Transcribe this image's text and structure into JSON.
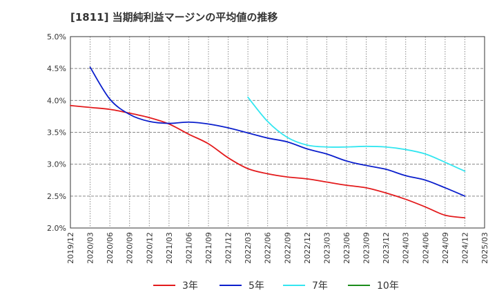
{
  "chart_data": {
    "type": "line",
    "title": "[1811]  当期純利益マージンの平均値の推移",
    "xlabel": "",
    "ylabel": "",
    "ylim": [
      2.0,
      5.0
    ],
    "yticks": [
      "2.0%",
      "2.5%",
      "3.0%",
      "3.5%",
      "4.0%",
      "4.5%",
      "5.0%"
    ],
    "xticks": [
      "2019/12",
      "2020/03",
      "2020/06",
      "2020/09",
      "2020/12",
      "2021/03",
      "2021/06",
      "2021/09",
      "2021/12",
      "2022/03",
      "2022/06",
      "2022/09",
      "2022/12",
      "2023/03",
      "2023/06",
      "2023/09",
      "2023/12",
      "2024/03",
      "2024/06",
      "2024/09",
      "2024/12",
      "2025/03"
    ],
    "grid": true,
    "legend_position": "bottom",
    "series": [
      {
        "name": "3年",
        "color": "#e31a1c",
        "points": [
          [
            "2019/12",
            3.92
          ],
          [
            "2020/03",
            3.89
          ],
          [
            "2020/06",
            3.86
          ],
          [
            "2020/09",
            3.8
          ],
          [
            "2020/12",
            3.73
          ],
          [
            "2021/03",
            3.63
          ],
          [
            "2021/06",
            3.47
          ],
          [
            "2021/09",
            3.32
          ],
          [
            "2021/12",
            3.1
          ],
          [
            "2022/03",
            2.93
          ],
          [
            "2022/06",
            2.85
          ],
          [
            "2022/09",
            2.8
          ],
          [
            "2022/12",
            2.77
          ],
          [
            "2023/03",
            2.72
          ],
          [
            "2023/06",
            2.67
          ],
          [
            "2023/09",
            2.63
          ],
          [
            "2023/12",
            2.55
          ],
          [
            "2024/03",
            2.45
          ],
          [
            "2024/06",
            2.33
          ],
          [
            "2024/09",
            2.2
          ],
          [
            "2024/12",
            2.16
          ]
        ]
      },
      {
        "name": "5年",
        "color": "#0a1ecc",
        "points": [
          [
            "2020/03",
            4.52
          ],
          [
            "2020/06",
            4.02
          ],
          [
            "2020/09",
            3.78
          ],
          [
            "2020/12",
            3.67
          ],
          [
            "2021/03",
            3.64
          ],
          [
            "2021/06",
            3.66
          ],
          [
            "2021/09",
            3.63
          ],
          [
            "2021/12",
            3.57
          ],
          [
            "2022/03",
            3.49
          ],
          [
            "2022/06",
            3.41
          ],
          [
            "2022/09",
            3.35
          ],
          [
            "2022/12",
            3.24
          ],
          [
            "2023/03",
            3.16
          ],
          [
            "2023/06",
            3.05
          ],
          [
            "2023/09",
            2.98
          ],
          [
            "2023/12",
            2.92
          ],
          [
            "2024/03",
            2.82
          ],
          [
            "2024/06",
            2.75
          ],
          [
            "2024/09",
            2.63
          ],
          [
            "2024/12",
            2.5
          ]
        ]
      },
      {
        "name": "7年",
        "color": "#33e6f0",
        "points": [
          [
            "2022/03",
            4.05
          ],
          [
            "2022/06",
            3.67
          ],
          [
            "2022/09",
            3.42
          ],
          [
            "2022/12",
            3.3
          ],
          [
            "2023/03",
            3.27
          ],
          [
            "2023/06",
            3.27
          ],
          [
            "2023/09",
            3.28
          ],
          [
            "2023/12",
            3.27
          ],
          [
            "2024/03",
            3.23
          ],
          [
            "2024/06",
            3.16
          ],
          [
            "2024/09",
            3.03
          ],
          [
            "2024/12",
            2.89
          ]
        ]
      },
      {
        "name": "10年",
        "color": "#1a8c1a",
        "points": []
      }
    ]
  }
}
